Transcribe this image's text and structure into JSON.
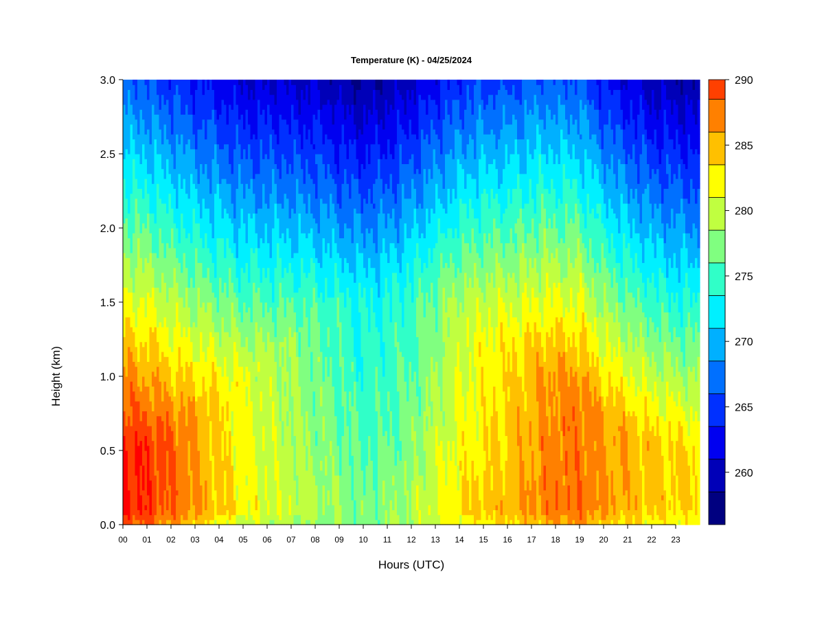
{
  "chart_data": {
    "type": "heatmap",
    "title": "Temperature (K) - 04/25/2024",
    "xlabel": "Hours (UTC)",
    "ylabel": "Height (km)",
    "xlim": [
      0,
      24
    ],
    "ylim": [
      0,
      3
    ],
    "x_ticks": [
      "00",
      "01",
      "02",
      "03",
      "04",
      "05",
      "06",
      "07",
      "08",
      "09",
      "10",
      "11",
      "12",
      "13",
      "14",
      "15",
      "16",
      "17",
      "18",
      "19",
      "20",
      "21",
      "22",
      "23"
    ],
    "y_ticks": [
      "0.0",
      "0.5",
      "1.0",
      "1.5",
      "2.0",
      "2.5",
      "3.0"
    ],
    "colorbar": {
      "min": 256,
      "max": 290,
      "step": 2.5,
      "tick_values": [
        260,
        265,
        270,
        275,
        280,
        285,
        290
      ],
      "tick_labels": [
        "260",
        "265",
        "270",
        "275",
        "280",
        "285",
        "290"
      ],
      "colors": [
        "#000080",
        "#0000B8",
        "#0000F0",
        "#0030FF",
        "#0070FF",
        "#00B0FF",
        "#00F0FF",
        "#30FFC8",
        "#80FF80",
        "#C0FF40",
        "#FFFF00",
        "#FFC000",
        "#FF8000",
        "#FF4000",
        "#FF0000",
        "#C00000",
        "#800000"
      ]
    },
    "surface_temperature_by_hour": [
      {
        "hour": 0,
        "temp_k": 289
      },
      {
        "hour": 1,
        "temp_k": 288
      },
      {
        "hour": 2,
        "temp_k": 286
      },
      {
        "hour": 3,
        "temp_k": 284
      },
      {
        "hour": 4,
        "temp_k": 282
      },
      {
        "hour": 5,
        "temp_k": 280
      },
      {
        "hour": 6,
        "temp_k": 279
      },
      {
        "hour": 8,
        "temp_k": 278
      },
      {
        "hour": 10,
        "temp_k": 277
      },
      {
        "hour": 12,
        "temp_k": 279
      },
      {
        "hour": 14,
        "temp_k": 282
      },
      {
        "hour": 16,
        "temp_k": 283
      },
      {
        "hour": 17.5,
        "temp_k": 285
      },
      {
        "hour": 19,
        "temp_k": 286
      },
      {
        "hour": 20,
        "temp_k": 284
      },
      {
        "hour": 22,
        "temp_k": 282
      },
      {
        "hour": 23.9,
        "temp_k": 281
      }
    ]
  }
}
